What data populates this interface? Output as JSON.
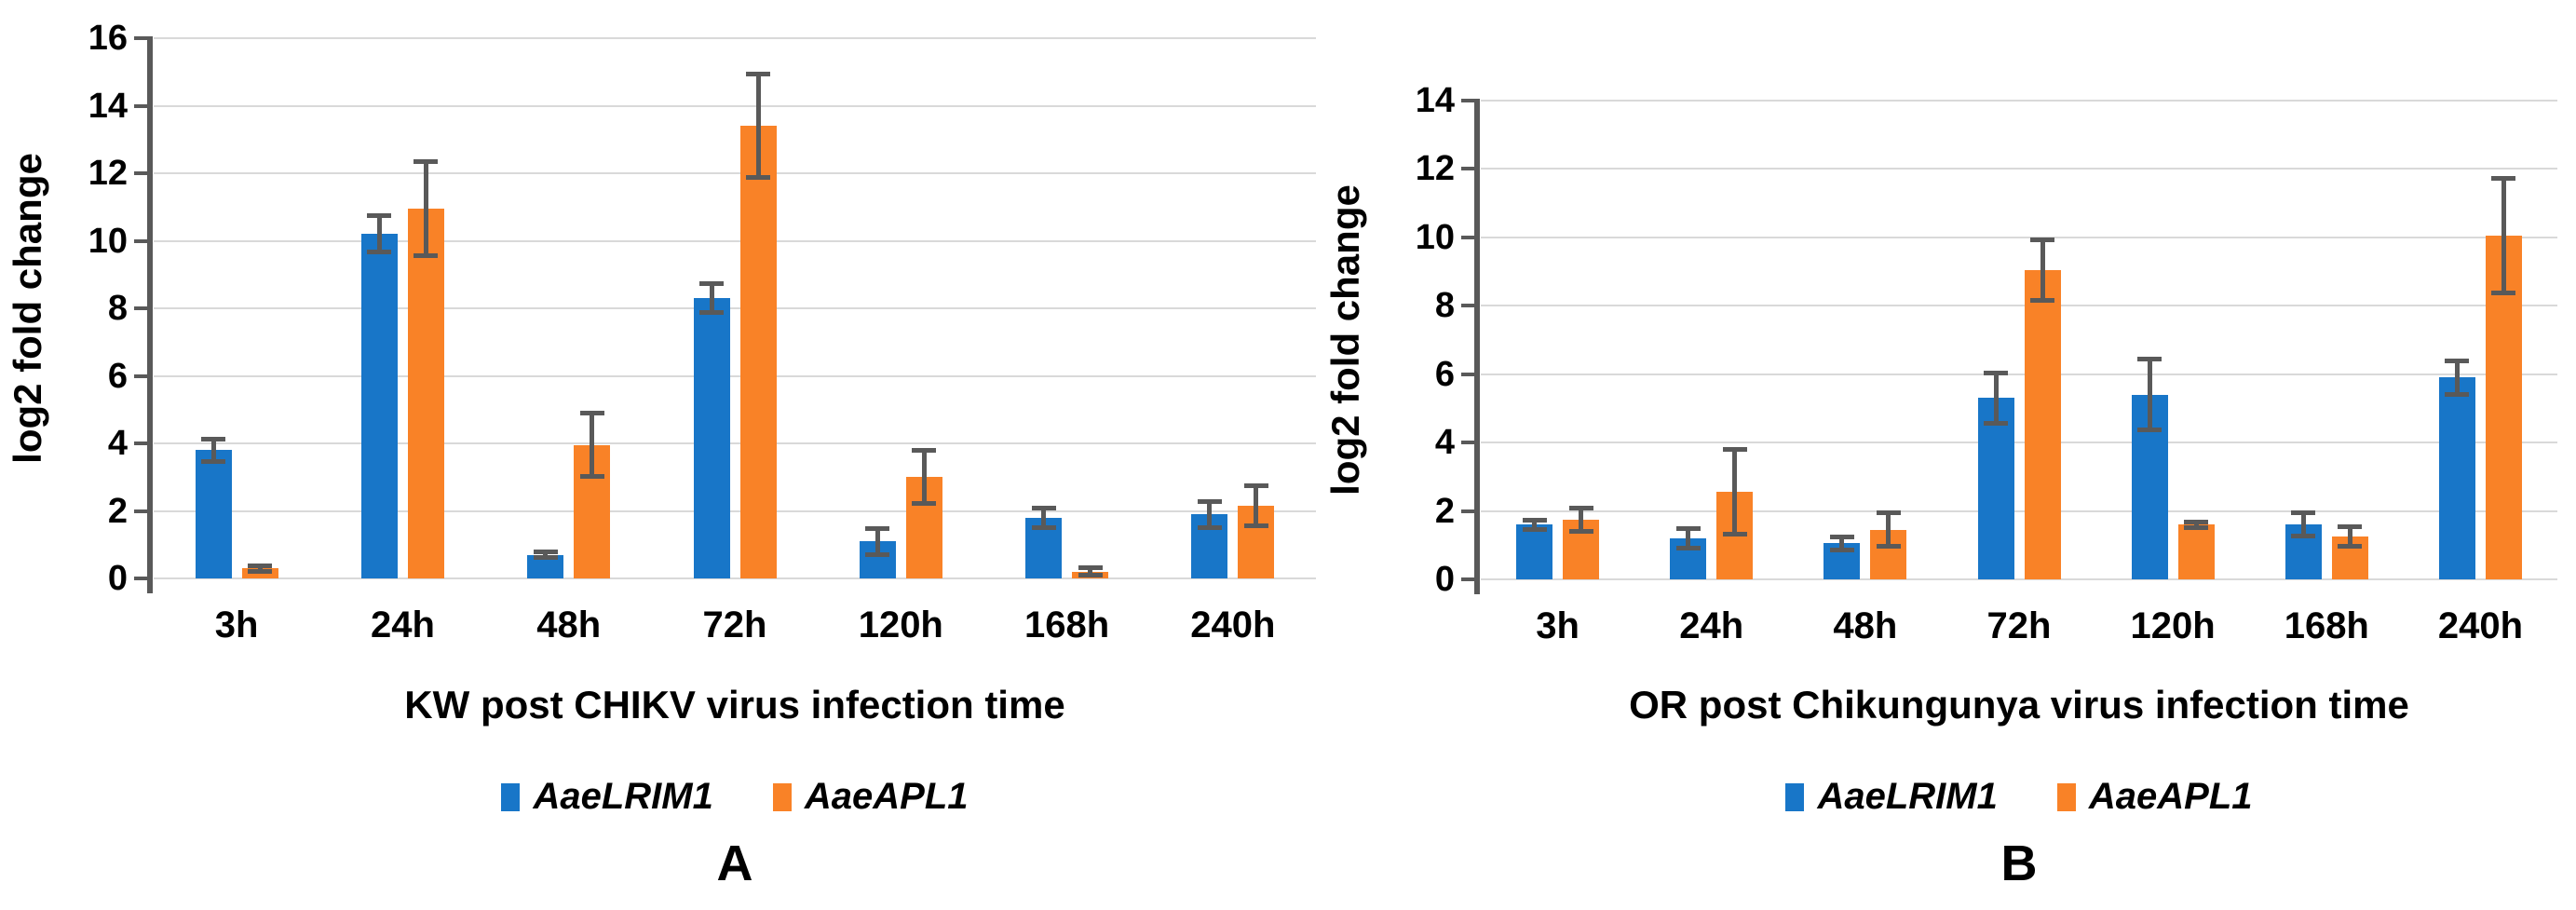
{
  "colors": {
    "blue": "#1876C8",
    "orange": "#F98227",
    "error_bar": "#595959",
    "axis": "#595959",
    "gridline": "#D9D9D9",
    "text": "#000000"
  },
  "chart_data": [
    {
      "type": "bar",
      "panel_letter": "A",
      "xlabel": "KW post CHIKV virus infection time",
      "ylabel": "log2 fold change",
      "categories": [
        "3h",
        "24h",
        "48h",
        "72h",
        "120h",
        "168h",
        "240h"
      ],
      "series": [
        {
          "name": "AaeLRIM1",
          "color": "#1876C8",
          "values": [
            3.8,
            10.2,
            0.7,
            8.3,
            1.1,
            1.8,
            1.9
          ],
          "errors": [
            0.35,
            0.55,
            0.1,
            0.45,
            0.4,
            0.3,
            0.4
          ]
        },
        {
          "name": "AaeAPL1",
          "color": "#F98227",
          "values": [
            0.3,
            10.95,
            3.95,
            13.4,
            3.0,
            0.2,
            2.15
          ],
          "errors": [
            0.1,
            1.4,
            0.95,
            1.55,
            0.8,
            0.12,
            0.6
          ]
        }
      ],
      "ylim": [
        0,
        16
      ],
      "ytick_step": 2,
      "grid": true,
      "legend_position": "bottom"
    },
    {
      "type": "bar",
      "panel_letter": "B",
      "xlabel": "OR post Chikungunya virus infection time",
      "ylabel": "log2 fold change",
      "categories": [
        "3h",
        "24h",
        "48h",
        "72h",
        "120h",
        "168h",
        "240h"
      ],
      "series": [
        {
          "name": "AaeLRIM1",
          "color": "#1876C8",
          "values": [
            1.6,
            1.2,
            1.05,
            5.3,
            5.4,
            1.6,
            5.9
          ],
          "errors": [
            0.15,
            0.3,
            0.2,
            0.75,
            1.05,
            0.35,
            0.5
          ]
        },
        {
          "name": "AaeAPL1",
          "color": "#F98227",
          "values": [
            1.75,
            2.55,
            1.45,
            9.05,
            1.6,
            1.25,
            10.05
          ],
          "errors": [
            0.35,
            1.25,
            0.5,
            0.9,
            0.1,
            0.3,
            1.7
          ]
        }
      ],
      "ylim": [
        0,
        14
      ],
      "ytick_step": 2,
      "grid": true,
      "legend_position": "bottom"
    }
  ]
}
